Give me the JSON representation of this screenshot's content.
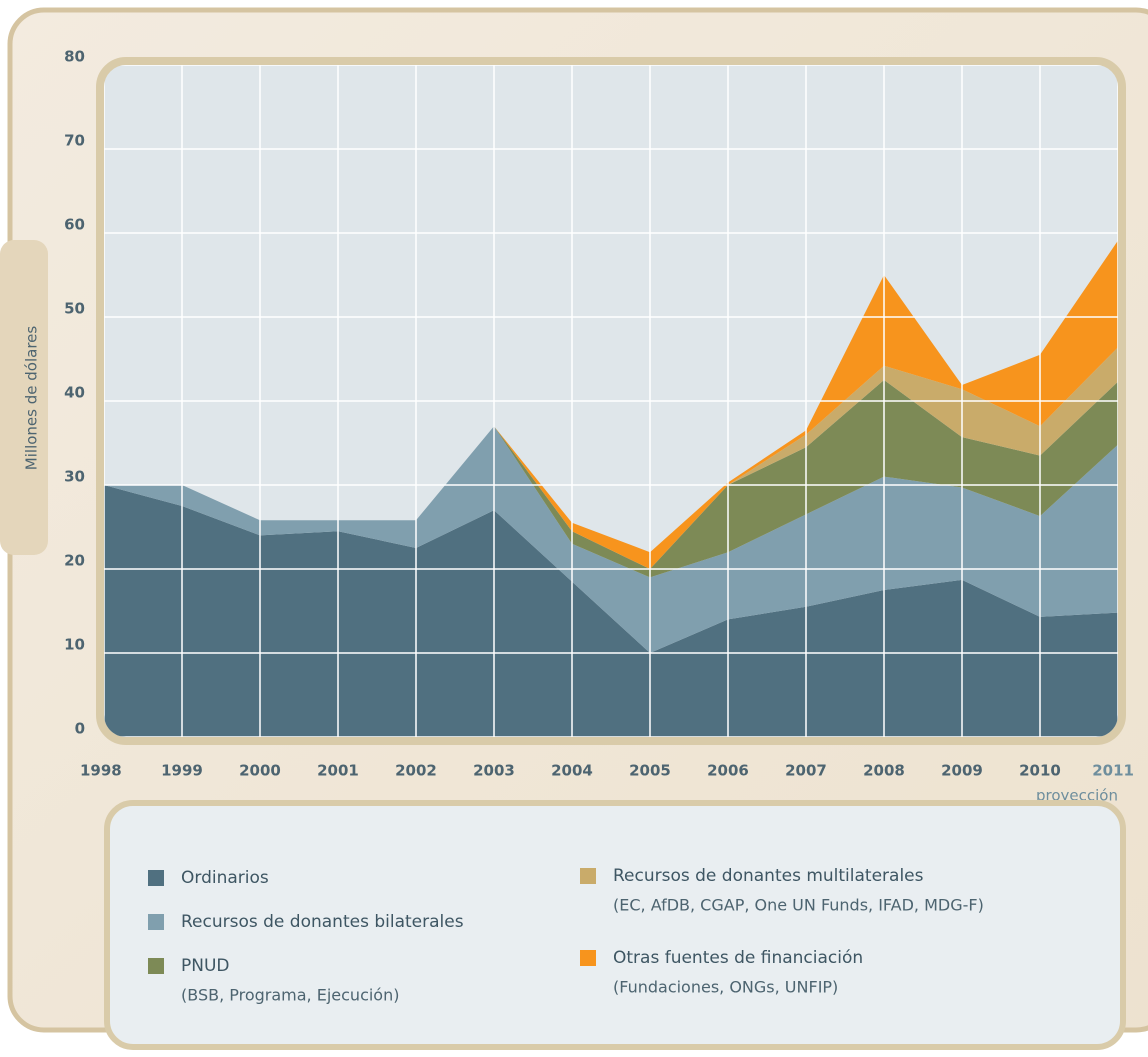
{
  "chart_data": {
    "type": "stacked_area",
    "y_label": "Millones de dólares",
    "annotation": "proyección",
    "categories": [
      "1998",
      "1999",
      "2000",
      "2001",
      "2002",
      "2003",
      "2004",
      "2005",
      "2006",
      "2007",
      "2008",
      "2009",
      "2010",
      "2011"
    ],
    "ylim": [
      0,
      80
    ],
    "yticks": [
      0,
      10,
      20,
      30,
      40,
      50,
      60,
      70,
      80
    ],
    "grid": true,
    "series": [
      {
        "name": "Ordinarios",
        "color": "#507080",
        "values": [
          30,
          27.5,
          24,
          24.5,
          22.5,
          27,
          18.5,
          10,
          14,
          15.5,
          17.5,
          18.7,
          14.3,
          14.8
        ]
      },
      {
        "name": "Recursos de donantes bilaterales",
        "color": "#809fae",
        "values": [
          0,
          2.5,
          1.8,
          1.3,
          3.3,
          10,
          4.5,
          9,
          8,
          11,
          13.5,
          11,
          12,
          20
        ]
      },
      {
        "name": "PNUD",
        "detail": "(BSB, Programa, Ejecución)",
        "color": "#7d8a56",
        "values": [
          0,
          0,
          0,
          0,
          0,
          0,
          1.5,
          1,
          8,
          8,
          11.5,
          6,
          7.2,
          7.5
        ]
      },
      {
        "name": "Recursos de donantes multilaterales",
        "detail": "(EC, AfDB, CGAP, One UN Funds, IFAD, MDG-F)",
        "color": "#c9ab6a",
        "values": [
          0,
          0,
          0,
          0,
          0,
          0,
          0,
          0,
          0,
          1.5,
          1.7,
          5.7,
          3.5,
          4.1
        ]
      },
      {
        "name": "Otras fuentes de financiación",
        "detail": "(Fundaciones, ONGs, UNFIP)",
        "color": "#f7941d",
        "values": [
          0,
          0,
          0,
          0,
          0,
          0,
          1,
          2,
          0.3,
          0.5,
          10.8,
          0.5,
          8.5,
          12.7
        ]
      }
    ]
  }
}
